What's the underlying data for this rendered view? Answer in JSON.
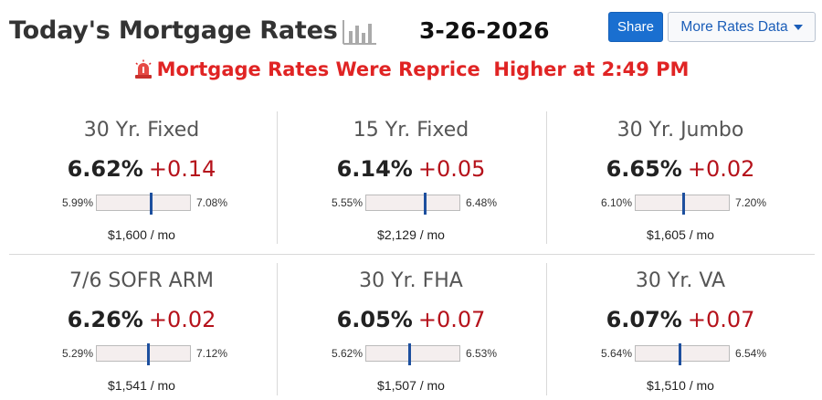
{
  "header": {
    "title": "Today's Mortgage Rates",
    "date": "3-26-2026",
    "share_label": "Share",
    "more_label": "More Rates Data",
    "chart_icon": "bar-chart-icon"
  },
  "alert": {
    "icon": "siren-icon",
    "text": "Mortgage Rates Were Reprice  Higher at 2:49 PM",
    "color": "#e02424"
  },
  "colors": {
    "change": "#b5121b",
    "share_button": "#1a6fd0",
    "marker": "#1d4f9e"
  },
  "cards": [
    {
      "title": "30 Yr. Fixed",
      "rate": "6.62%",
      "change": "+0.14",
      "low": "5.99%",
      "high": "7.08%",
      "marker_fraction": 0.58,
      "payment": "$1,600 / mo"
    },
    {
      "title": "15 Yr. Fixed",
      "rate": "6.14%",
      "change": "+0.05",
      "low": "5.55%",
      "high": "6.48%",
      "marker_fraction": 0.63,
      "payment": "$2,129 / mo"
    },
    {
      "title": "30 Yr. Jumbo",
      "rate": "6.65%",
      "change": "+0.02",
      "low": "6.10%",
      "high": "7.20%",
      "marker_fraction": 0.51,
      "payment": "$1,605 / mo"
    },
    {
      "title": "7/6 SOFR ARM",
      "rate": "6.26%",
      "change": "+0.02",
      "low": "5.29%",
      "high": "7.12%",
      "marker_fraction": 0.55,
      "payment": "$1,541 / mo"
    },
    {
      "title": "30 Yr. FHA",
      "rate": "6.05%",
      "change": "+0.07",
      "low": "5.62%",
      "high": "6.53%",
      "marker_fraction": 0.47,
      "payment": "$1,507 / mo"
    },
    {
      "title": "30 Yr. VA",
      "rate": "6.07%",
      "change": "+0.07",
      "low": "5.64%",
      "high": "6.54%",
      "marker_fraction": 0.48,
      "payment": "$1,510 / mo"
    }
  ]
}
